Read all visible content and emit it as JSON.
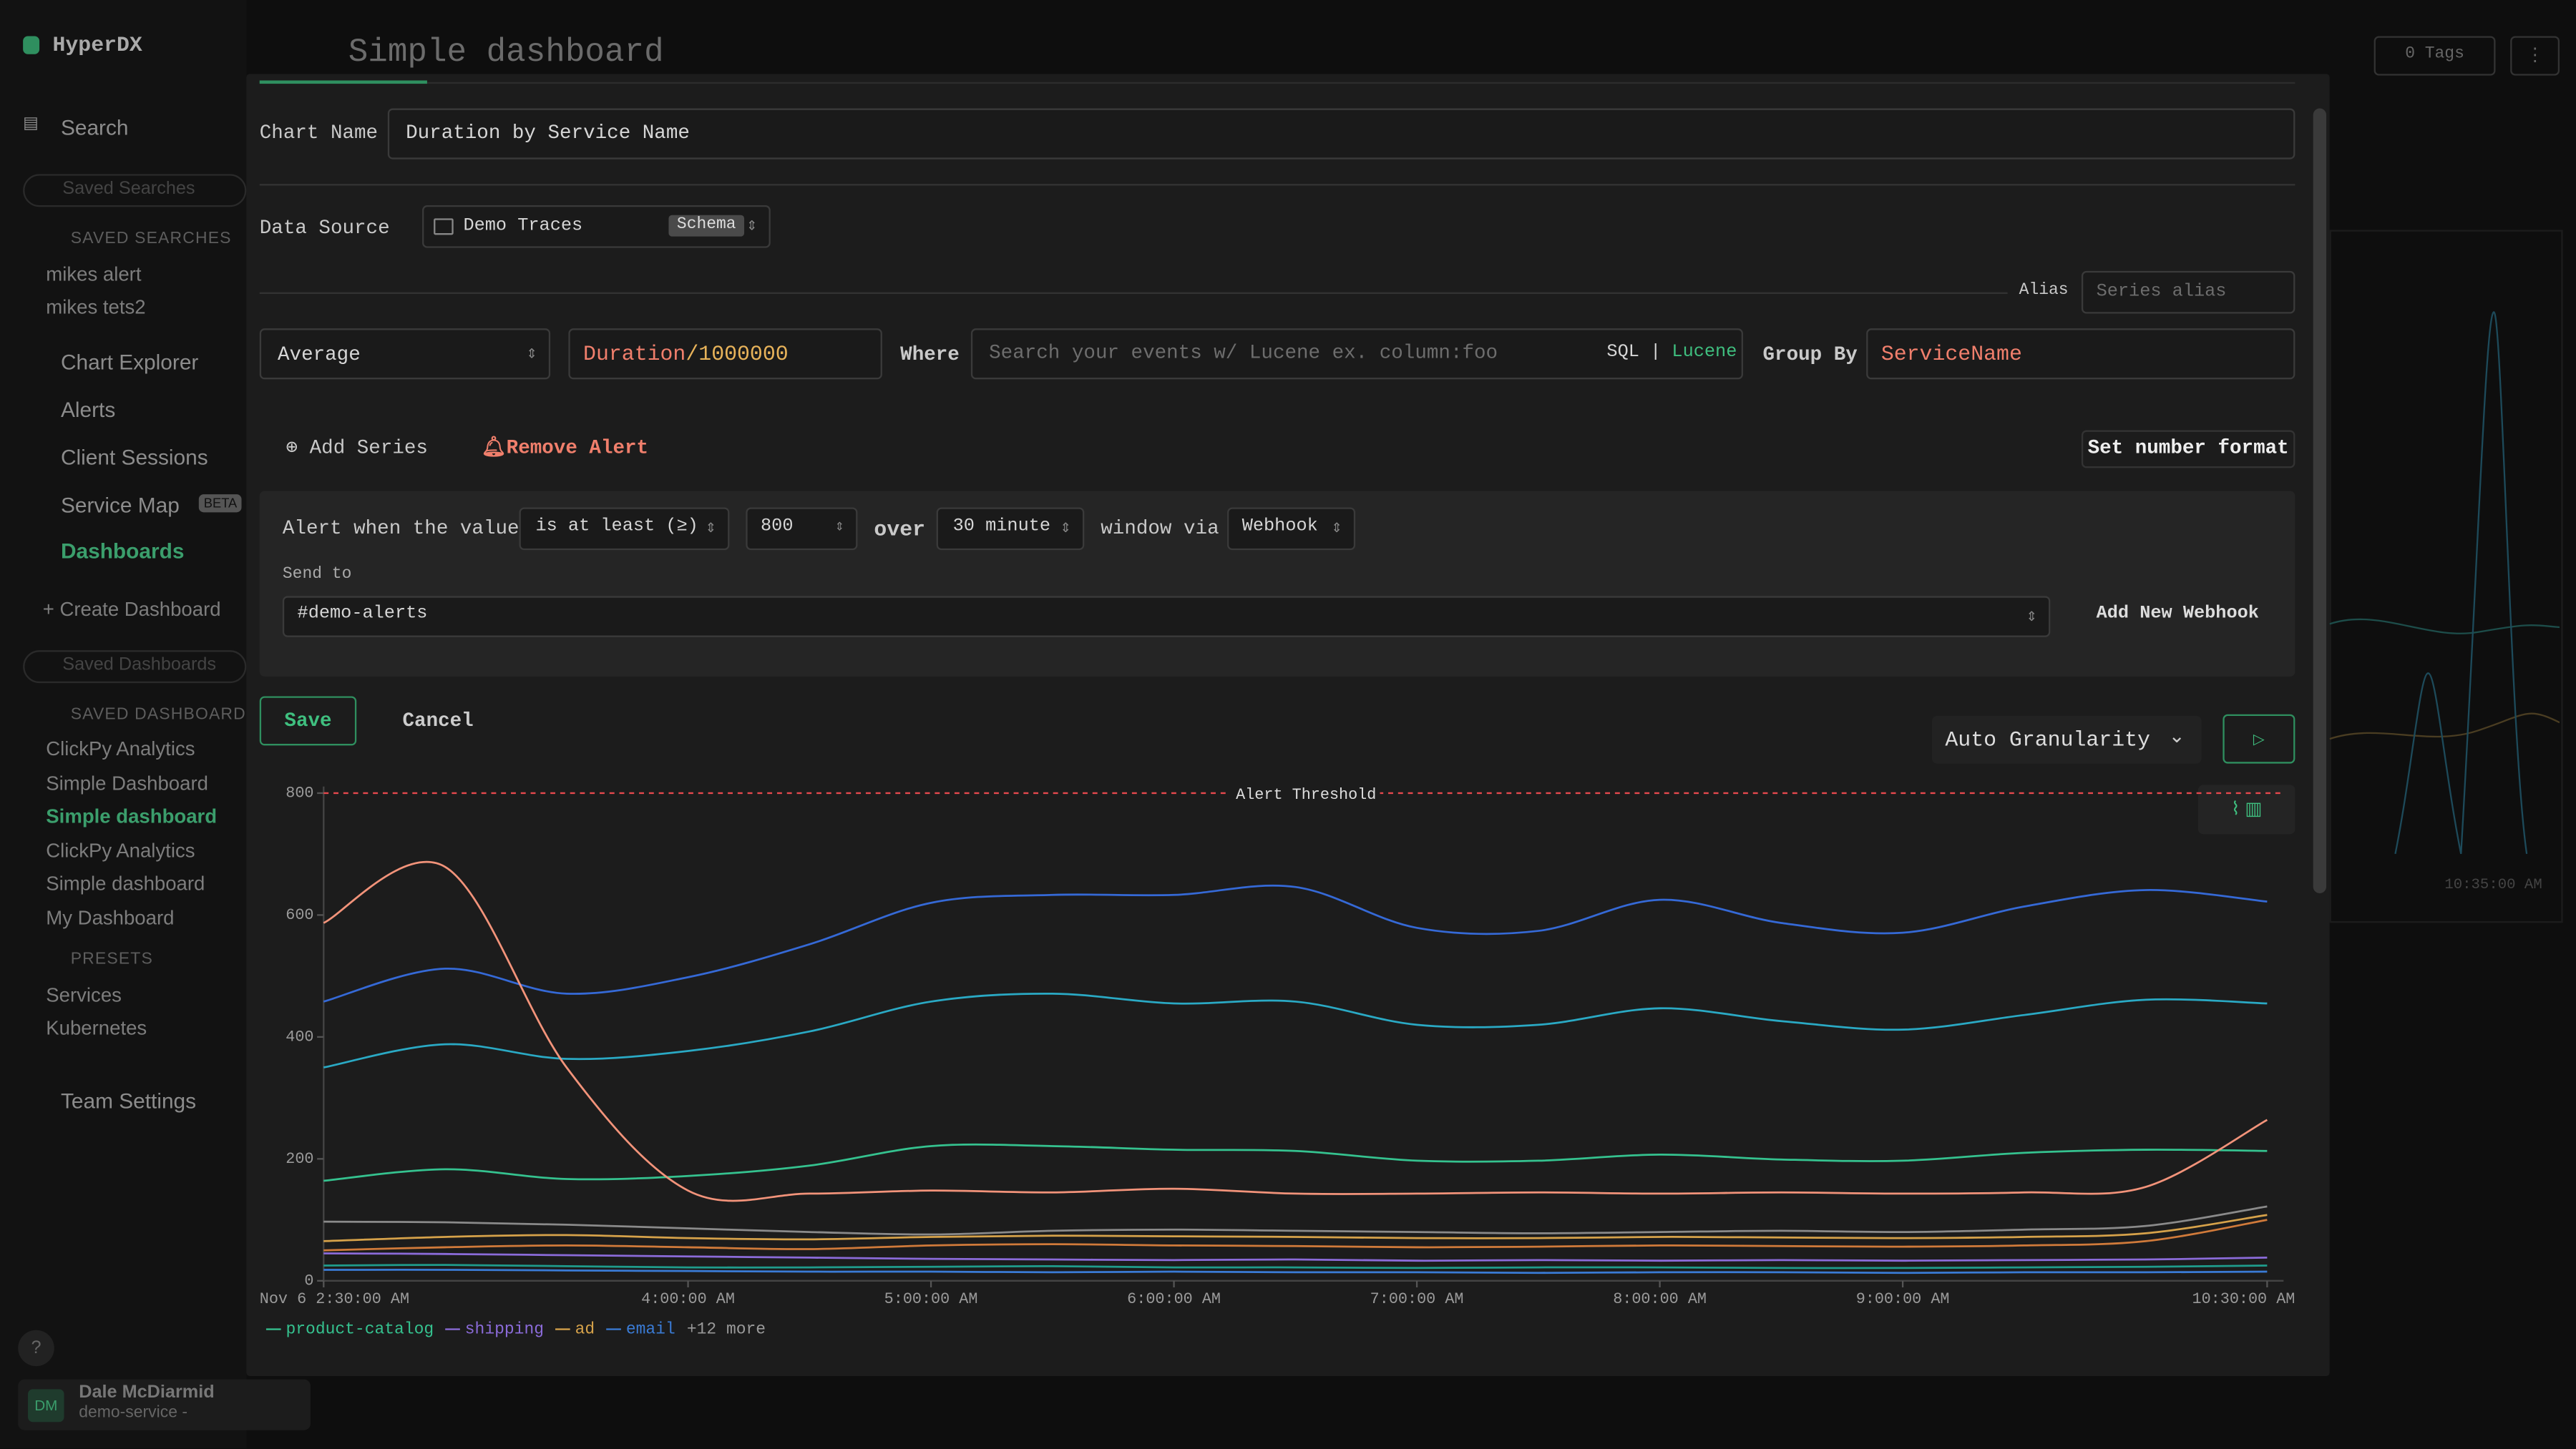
{
  "sidebar": {
    "brand": "HyperDX",
    "search": "Search",
    "saved_searches_placeholder": "Saved Searches",
    "saved_searches_heading": "SAVED SEARCHES",
    "saved_searches": [
      "mikes alert",
      "mikes tets2"
    ],
    "nav": [
      "Chart Explorer",
      "Alerts",
      "Client Sessions",
      "Service Map",
      "Dashboards"
    ],
    "beta_badge": "BETA",
    "create_dashboard": "Create Dashboard",
    "saved_dashboards_placeholder": "Saved Dashboards",
    "saved_dashboards_heading": "SAVED DASHBOARDS",
    "saved_dashboards": [
      "ClickPy Analytics",
      "Simple Dashboard",
      "Simple dashboard",
      "ClickPy Analytics",
      "Simple dashboard",
      "My Dashboard"
    ],
    "presets_heading": "PRESETS",
    "presets": [
      "Services",
      "Kubernetes"
    ],
    "team_settings": "Team Settings",
    "help": "?",
    "user": {
      "initials": "DM",
      "name": "Dale McDiarmid",
      "team": "demo-service -"
    }
  },
  "header": {
    "title": "Simple dashboard",
    "tags": "0 Tags"
  },
  "background_chart": {
    "time_label": "10:35:00 AM"
  },
  "editor": {
    "chart_name_label": "Chart Name",
    "chart_name": "Duration by Service Name",
    "data_source_label": "Data Source",
    "data_source": "Demo Traces",
    "schema_badge": "Schema",
    "alias_label": "Alias",
    "alias_placeholder": "Series alias",
    "aggregation": "Average",
    "expression_field": "Duration",
    "expression_operand": "/1000000",
    "where_label": "Where",
    "where_placeholder": "Search your events w/ Lucene ex. column:foo",
    "query_lang_sql": "SQL",
    "query_lang_separator": "|",
    "query_lang_lucene": "Lucene",
    "group_by_label": "Group By",
    "group_by": "ServiceName",
    "add_series": "Add Series",
    "remove_alert": "Remove Alert",
    "number_format": "Set number format",
    "alert": {
      "prefix": "Alert when the value",
      "condition": "is at least (≥)",
      "threshold": "800",
      "over": "over",
      "window": "30 minute",
      "via": "window via",
      "channel": "Webhook",
      "send_to_label": "Send to",
      "send_to": "#demo-alerts",
      "add_webhook": "Add New Webhook"
    },
    "save": "Save",
    "cancel": "Cancel",
    "granularity": "Auto Granularity"
  },
  "chart_data": {
    "type": "line",
    "x": [
      2.5,
      3,
      3.5,
      4,
      4.5,
      5,
      5.5,
      6,
      6.5,
      7,
      7.5,
      8,
      8.5,
      9,
      9.5,
      10,
      10.5
    ],
    "xlim": [
      2.5,
      10.5
    ],
    "xticks": [
      {
        "value": 2.5,
        "label": "Nov 6 2:30:00 AM"
      },
      {
        "value": 4,
        "label": "4:00:00 AM"
      },
      {
        "value": 5,
        "label": "5:00:00 AM"
      },
      {
        "value": 6,
        "label": "6:00:00 AM"
      },
      {
        "value": 7,
        "label": "7:00:00 AM"
      },
      {
        "value": 8,
        "label": "8:00:00 AM"
      },
      {
        "value": 9,
        "label": "9:00:00 AM"
      },
      {
        "value": 10.5,
        "label": "10:30:00 AM"
      }
    ],
    "ylim": [
      0,
      800
    ],
    "yticks": [
      0,
      200,
      400,
      600,
      800
    ],
    "threshold": {
      "label": "Alert Threshold",
      "value": 800,
      "color": "#e5484d"
    },
    "series": [
      {
        "name": "product-catalog",
        "color": "#35c28f",
        "values": [
          164,
          183,
          167,
          172,
          189,
          221,
          221,
          215,
          213,
          197,
          197,
          207,
          199,
          197,
          210,
          215,
          213
        ]
      },
      {
        "name": "shipping",
        "color": "#8b6bd9",
        "values": [
          45,
          44,
          42,
          40,
          38,
          36,
          35,
          34,
          35,
          33,
          34,
          33,
          34,
          33,
          34,
          35,
          38
        ]
      },
      {
        "name": "ad",
        "color": "#d6a24a",
        "values": [
          65,
          72,
          75,
          70,
          68,
          72,
          74,
          73,
          72,
          70,
          70,
          72,
          71,
          70,
          72,
          78,
          108
        ]
      },
      {
        "name": "email",
        "color": "#3a7bd5",
        "values": [
          18,
          18,
          17,
          16,
          15,
          15,
          14,
          15,
          14,
          14,
          13,
          14,
          14,
          13,
          14,
          14,
          15
        ]
      },
      {
        "color": "#3569d6",
        "values": [
          458,
          512,
          471,
          498,
          552,
          620,
          633,
          633,
          646,
          579,
          574,
          625,
          587,
          571,
          614,
          641,
          622
        ]
      },
      {
        "color": "#2aa9c4",
        "values": [
          350,
          388,
          364,
          377,
          409,
          458,
          471,
          455,
          458,
          420,
          420,
          447,
          426,
          412,
          436,
          461,
          455
        ]
      },
      {
        "color": "#f2937a",
        "values": [
          587,
          679,
          350,
          148,
          143,
          148,
          145,
          151,
          143,
          143,
          145,
          143,
          145,
          143,
          145,
          154,
          264
        ]
      },
      {
        "color": "#8a8a8a",
        "values": [
          97,
          96,
          92,
          86,
          80,
          76,
          82,
          84,
          82,
          80,
          78,
          80,
          82,
          80,
          84,
          90,
          122
        ]
      },
      {
        "color": "#d07a3a",
        "values": [
          50,
          55,
          58,
          55,
          52,
          58,
          60,
          58,
          57,
          55,
          56,
          58,
          57,
          56,
          58,
          65,
          100
        ]
      },
      {
        "color": "#1f9c8c",
        "values": [
          25,
          26,
          24,
          22,
          22,
          23,
          24,
          22,
          22,
          21,
          22,
          22,
          21,
          21,
          22,
          23,
          25
        ]
      }
    ],
    "legend_more": "+12 more"
  }
}
